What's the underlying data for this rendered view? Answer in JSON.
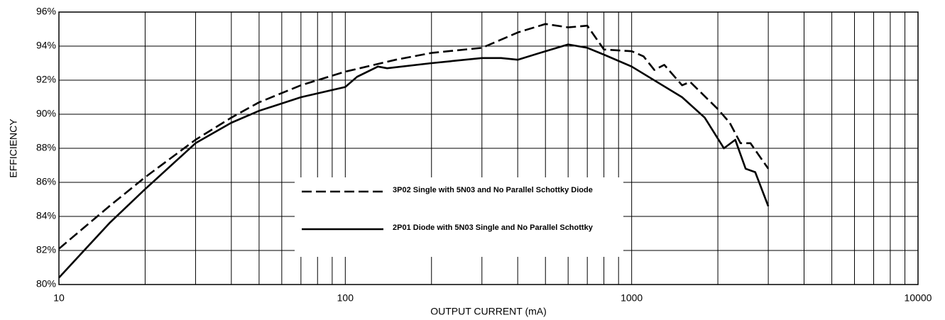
{
  "chart_data": {
    "type": "line",
    "xlabel": "OUTPUT CURRENT (mA)",
    "ylabel": "EFFICIENCY",
    "xscale": "log",
    "xlim": [
      10,
      10000
    ],
    "xticks": [
      10,
      100,
      1000,
      10000
    ],
    "x_minor_ticks": [
      20,
      30,
      40,
      50,
      60,
      70,
      80,
      90,
      200,
      300,
      400,
      500,
      600,
      700,
      800,
      900,
      2000,
      3000,
      4000,
      5000,
      6000,
      7000,
      8000,
      9000
    ],
    "ylim": [
      80,
      96
    ],
    "yticks": [
      {
        "value": 80,
        "label": "80%"
      },
      {
        "value": 82,
        "label": "82%"
      },
      {
        "value": 84,
        "label": "84%"
      },
      {
        "value": 86,
        "label": "86%"
      },
      {
        "value": 88,
        "label": "88%"
      },
      {
        "value": 90,
        "label": "90%"
      },
      {
        "value": 92,
        "label": "92%"
      },
      {
        "value": 94,
        "label": "94%"
      },
      {
        "value": 96,
        "label": "96%"
      }
    ],
    "grid": true,
    "series": [
      {
        "name": "3P02 Single with 5N03 and No Parallel Schottky Diode",
        "color": "#000000",
        "dashed": true,
        "x": [
          10,
          15,
          20,
          30,
          40,
          50,
          70,
          100,
          150,
          200,
          300,
          400,
          500,
          600,
          700,
          800,
          1000,
          1100,
          1200,
          1300,
          1500,
          1600,
          2000,
          2200,
          2400,
          2600,
          3000
        ],
        "values": [
          82.1,
          84.6,
          86.3,
          88.5,
          89.8,
          90.7,
          91.7,
          92.5,
          93.2,
          93.6,
          93.9,
          94.8,
          95.3,
          95.1,
          95.2,
          93.8,
          93.7,
          93.4,
          92.6,
          92.9,
          91.7,
          91.9,
          90.3,
          89.5,
          88.3,
          88.3,
          86.8
        ]
      },
      {
        "name": "2P01 Diode with 5N03 Single and No Parallel Schottky",
        "color": "#000000",
        "dashed": false,
        "x": [
          10,
          15,
          20,
          30,
          40,
          50,
          70,
          100,
          110,
          130,
          140,
          200,
          300,
          350,
          400,
          500,
          600,
          700,
          800,
          1000,
          1500,
          1800,
          2100,
          2300,
          2500,
          2700,
          3000
        ],
        "values": [
          80.4,
          83.6,
          85.6,
          88.3,
          89.5,
          90.2,
          91.0,
          91.6,
          92.2,
          92.8,
          92.7,
          93.0,
          93.3,
          93.3,
          93.2,
          93.7,
          94.1,
          93.9,
          93.5,
          92.8,
          91.0,
          89.8,
          88.0,
          88.5,
          86.8,
          86.6,
          84.6
        ]
      }
    ]
  }
}
